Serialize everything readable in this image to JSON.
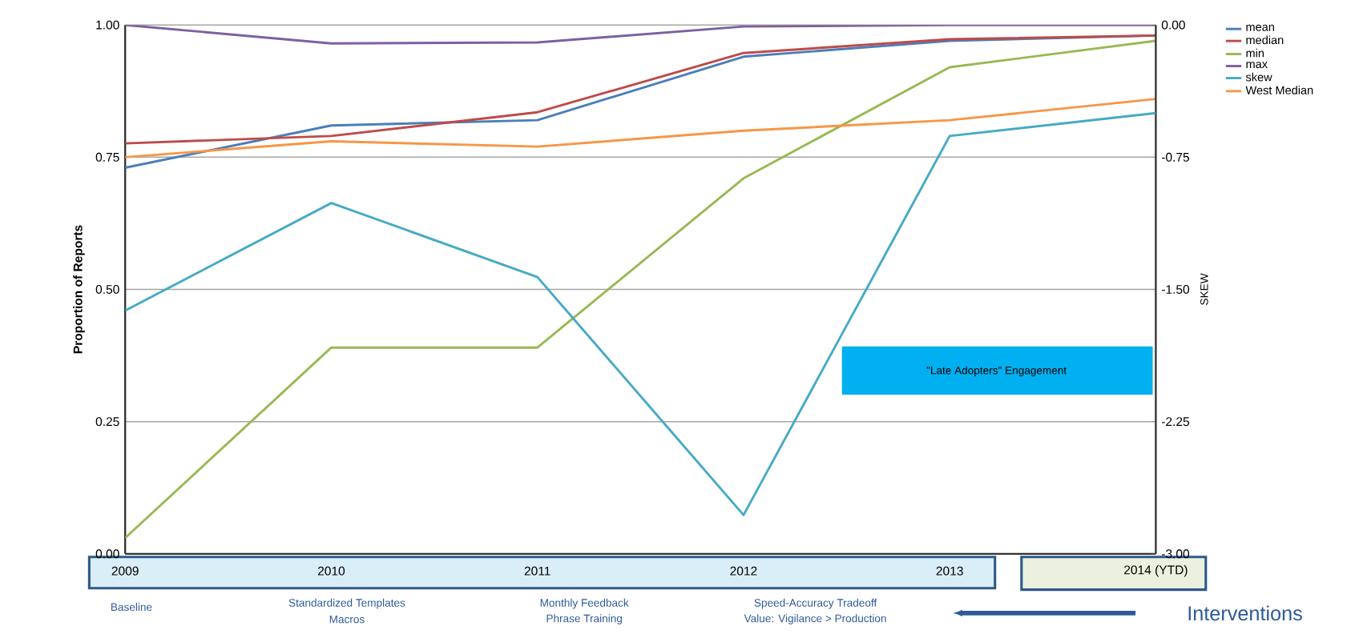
{
  "chart_data": {
    "type": "line",
    "xlabel": null,
    "ylabel": "Proportion of Reports",
    "y2label": "SKEW",
    "categories": [
      "2009",
      "2010",
      "2011",
      "2012",
      "2013",
      "2014 (YTD)"
    ],
    "series": [
      {
        "name": "mean",
        "color": "#4a7ebb",
        "values": [
          0.73,
          0.81,
          0.82,
          0.94,
          0.97,
          0.98
        ]
      },
      {
        "name": "median",
        "color": "#be4b48",
        "values": [
          0.776,
          0.79,
          0.835,
          0.947,
          0.973,
          0.98
        ]
      },
      {
        "name": "min",
        "color": "#98b954",
        "values": [
          0.03,
          0.39,
          0.39,
          0.71,
          0.92,
          0.97
        ]
      },
      {
        "name": "max",
        "color": "#7d60a0",
        "values": [
          1.0,
          0.965,
          0.967,
          0.997,
          1.0,
          1.0
        ]
      },
      {
        "name": "skew",
        "color": "#46aac5",
        "axis": "y2",
        "values": [
          -1.62,
          -1.01,
          -1.43,
          -2.78,
          -0.63,
          -0.5
        ]
      },
      {
        "name": "West Median",
        "color": "#f79646",
        "values": [
          0.75,
          0.78,
          0.77,
          0.8,
          0.82,
          0.86
        ]
      }
    ],
    "ylim": [
      0,
      1
    ],
    "yticks": [
      {
        "value": 0,
        "label": "0.00"
      },
      {
        "value": 0.25,
        "label": "0.25"
      },
      {
        "value": 0.5,
        "label": "0.50"
      },
      {
        "value": 0.75,
        "label": "0.75"
      },
      {
        "value": 1,
        "label": "1.00"
      }
    ],
    "y2lim": [
      -3,
      0
    ],
    "y2ticks": [
      {
        "value": -3,
        "label": "-3.00"
      },
      {
        "value": -2.25,
        "label": "-2.25"
      },
      {
        "value": -1.5,
        "label": "-1.50"
      },
      {
        "value": -0.75,
        "label": "-0.75"
      },
      {
        "value": 0,
        "label": "0.00"
      }
    ],
    "grid": "y",
    "legend": "right",
    "marker": "none",
    "line_style": "solid",
    "annotations": [
      "Baseline",
      "Standardized Templates",
      "Macros",
      "Monthly Feedback",
      "Phrase Training",
      "Speed-Accuracy Tradeoff",
      "Value: Vigilance > Production",
      "\"Late Adopters\" Engagement",
      "Interventions"
    ]
  }
}
